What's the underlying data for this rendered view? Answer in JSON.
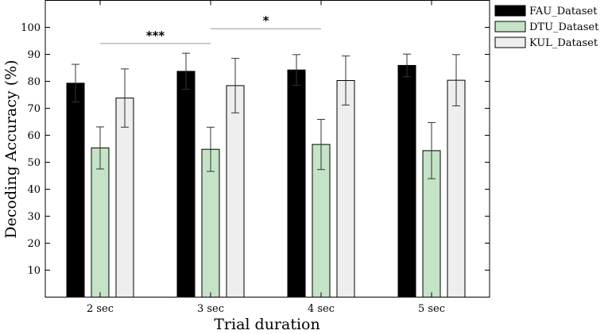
{
  "chart_data": {
    "type": "bar",
    "categories": [
      "2 sec",
      "3 sec",
      "4 sec",
      "5 sec"
    ],
    "xlabel": "Trial duration",
    "ylabel": "Decoding Accuracy (%)",
    "ylim": [
      0,
      110
    ],
    "yticks": [
      10,
      20,
      30,
      40,
      50,
      60,
      70,
      80,
      90,
      100
    ],
    "grid": false,
    "legend_position": "top-right",
    "series": [
      {
        "name": "FAU_Dataset",
        "color": "#000000",
        "values": [
          79.3,
          83.7,
          84.2,
          85.9
        ],
        "errors": [
          7.0,
          6.7,
          5.7,
          4.2
        ]
      },
      {
        "name": "DTU_Dataset",
        "color": "#c5e3c6",
        "values": [
          55.3,
          54.8,
          56.6,
          54.3
        ],
        "errors": [
          7.8,
          8.2,
          9.3,
          10.4
        ]
      },
      {
        "name": "KUL_Dataset",
        "color": "#eeeeee",
        "values": [
          73.8,
          78.4,
          80.3,
          80.4
        ],
        "errors": [
          10.8,
          10.1,
          9.1,
          9.5
        ]
      }
    ],
    "annotations": [
      {
        "text": "***",
        "from_category": 0,
        "to_category": 1,
        "y": 94
      },
      {
        "text": "*",
        "from_category": 1,
        "to_category": 2,
        "y": 99.5
      }
    ]
  }
}
